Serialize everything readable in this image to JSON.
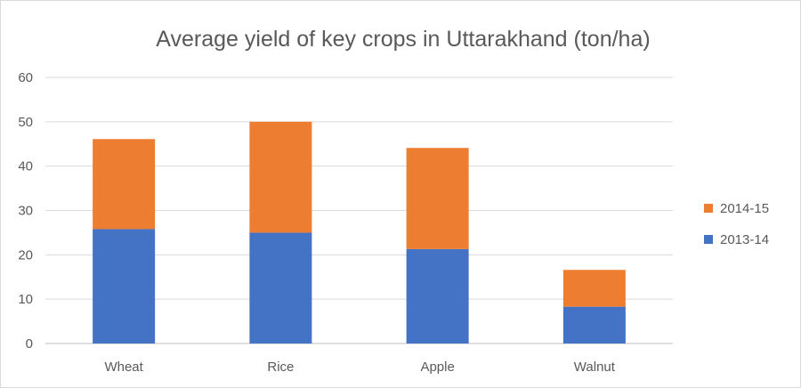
{
  "chart_data": {
    "type": "bar",
    "stacked": true,
    "title": "Average yield of key crops in Uttarakhand (ton/ha)",
    "xlabel": "",
    "ylabel": "",
    "categories": [
      "Wheat",
      "Rice",
      "Apple",
      "Walnut"
    ],
    "series": [
      {
        "name": "2013-14",
        "color": "#4472C4",
        "values": [
          25.8,
          25.0,
          21.3,
          8.3
        ]
      },
      {
        "name": "2014-15",
        "color": "#ED7D31",
        "values": [
          20.3,
          25.0,
          22.8,
          8.3
        ]
      }
    ],
    "ylim": [
      0,
      60
    ],
    "yticks": [
      0,
      10,
      20,
      30,
      40,
      50,
      60
    ],
    "grid": true,
    "legend": "right"
  }
}
